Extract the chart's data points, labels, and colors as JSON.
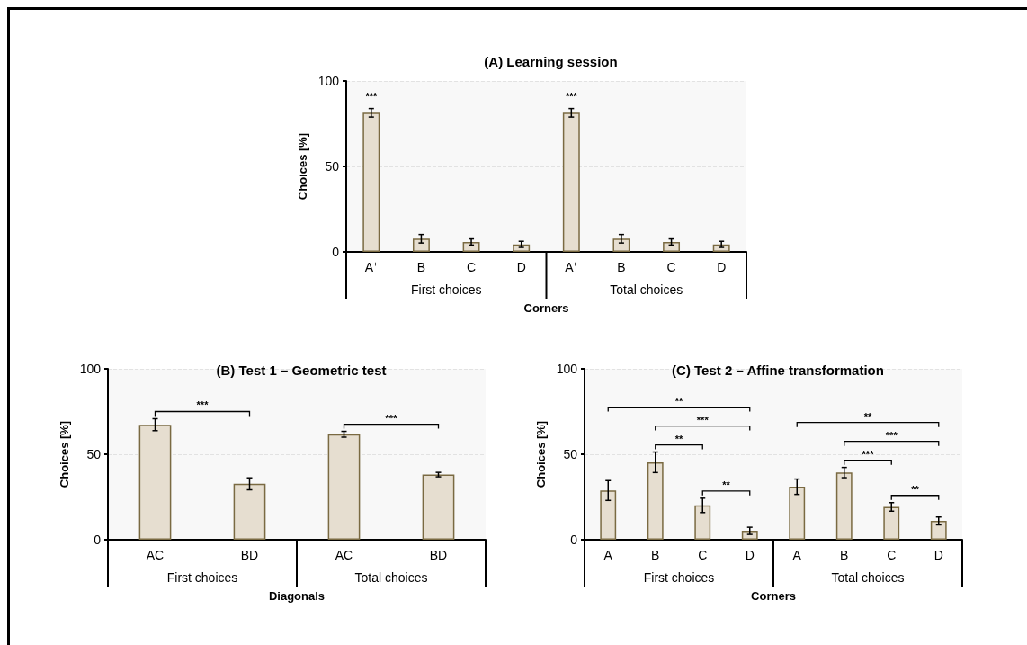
{
  "chart_data": [
    {
      "type": "bar",
      "title": "(A) Learning session",
      "xlabel": "Corners",
      "ylabel": "Choices [%]",
      "categories": [
        "A⁺",
        "B",
        "C",
        "D",
        "A⁺",
        "B",
        "C",
        "D"
      ],
      "values": [
        81.4,
        7.7,
        5.8,
        4.4,
        81.4,
        7.7,
        5.8,
        4.4
      ],
      "errors": [
        2.5,
        2.5,
        1.8,
        1.8,
        2.5,
        2.5,
        1.8,
        1.8
      ],
      "color": "#e6ded0",
      "ylim": [
        0,
        100
      ],
      "yticks": [
        0,
        50,
        100
      ],
      "grid": "y",
      "annotations": [
        "First choices",
        "Total choices",
        "***",
        "***"
      ]
    },
    {
      "type": "bar",
      "title": "(B) Test 1 – Geometric test",
      "xlabel": "Diagonals",
      "ylabel": "Choices [%]",
      "categories": [
        "AC",
        "BD",
        "AC",
        "BD"
      ],
      "values": [
        67.3,
        32.7,
        61.7,
        38.1
      ],
      "errors": [
        3.5,
        3.5,
        1.7,
        1.3
      ],
      "color": "#e6ded0",
      "ylim": [
        0,
        100
      ],
      "yticks": [
        0,
        50,
        100
      ],
      "grid": "y",
      "annotations": [
        "First choices",
        "Total choices",
        "***",
        "***"
      ]
    },
    {
      "type": "bar",
      "title": "(C) Test 2 – Affine transformation",
      "xlabel": "Corners",
      "ylabel": "Choices [%]",
      "categories": [
        "A",
        "B",
        "C",
        "D",
        "A",
        "B",
        "C",
        "D"
      ],
      "values": [
        28.8,
        45.3,
        20.1,
        5.2,
        31,
        39.3,
        19.2,
        11
      ],
      "errors": [
        5.8,
        6,
        4.2,
        2.1,
        4.5,
        3,
        2.5,
        2.3
      ],
      "color": "#e6ded0",
      "ylim": [
        0,
        100
      ],
      "yticks": [
        0,
        50,
        100
      ],
      "grid": "y",
      "annotations": [
        "First choices",
        "Total choices",
        "**",
        "***",
        "**",
        "**",
        "**",
        "***",
        "***",
        "**"
      ]
    }
  ]
}
